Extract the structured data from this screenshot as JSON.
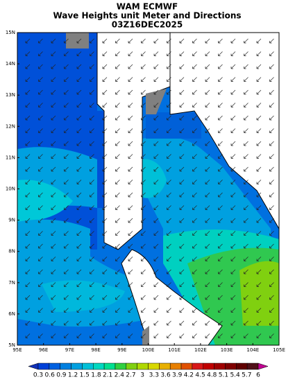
{
  "header": {
    "title": [
      "WAM ECMWF",
      "Wave Heights unit Meter and Directions",
      "03Z16DEC2025"
    ]
  },
  "map": {
    "lat_labels": [
      "15N",
      "14N",
      "13N",
      "12N",
      "11N",
      "10N",
      "9N",
      "8N",
      "7N",
      "6N",
      "5N"
    ],
    "lon_labels": [
      "95E",
      "96E",
      "97E",
      "98E",
      "99E",
      "100E",
      "101E",
      "102E",
      "103E",
      "104E",
      "105E"
    ]
  },
  "colorbar": {
    "labels": [
      "0.3",
      "0.6",
      "0.9",
      "1.2",
      "1.5",
      "1.8",
      "2.1",
      "2.4",
      "2.7",
      "3",
      "3.3",
      "3.6",
      "3.9",
      "4.2",
      "4.5",
      "4.8",
      "5.1",
      "5.4",
      "5.7",
      "6"
    ],
    "colors": [
      "#1030b8",
      "#0040d8",
      "#0060e0",
      "#0080e0",
      "#00a0e0",
      "#00c0d8",
      "#00d8c0",
      "#00e090",
      "#30d040",
      "#80d010",
      "#b0d800",
      "#d8d800",
      "#e8b000",
      "#e88000",
      "#e05000",
      "#d81818",
      "#c00000",
      "#a00000",
      "#800000",
      "#600000",
      "#501018",
      "#c00090"
    ]
  }
}
